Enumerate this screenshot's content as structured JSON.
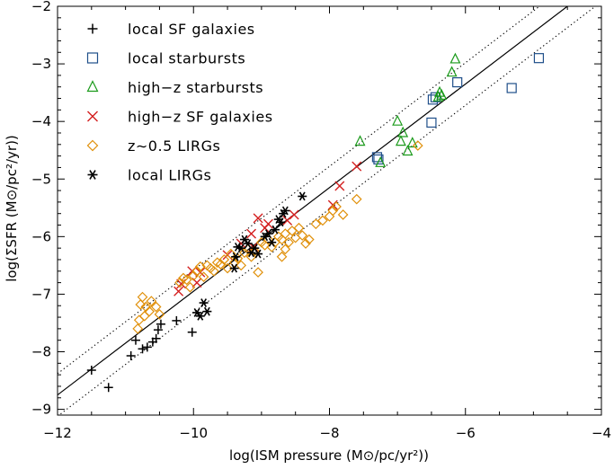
{
  "chart_data": {
    "type": "scatter",
    "xlabel": "log(ISM pressure (M⊙/pc/yr²))",
    "ylabel": "log(ΣSFR (M⊙/pc²/yr))",
    "xlim": [
      -12,
      -4
    ],
    "ylim": [
      -9.1,
      -2
    ],
    "x_ticks": [
      -12,
      -10,
      -8,
      -6,
      -4
    ],
    "x_tick_labels": [
      "−12",
      "−10",
      "−8",
      "−6",
      "−4"
    ],
    "y_ticks": [
      -9,
      -8,
      -7,
      -6,
      -5,
      -4,
      -3,
      -2
    ],
    "y_tick_labels": [
      "−9",
      "−8",
      "−7",
      "−6",
      "−5",
      "−4",
      "−3",
      "−2"
    ],
    "grid": false,
    "legend_position": "top-left",
    "fit_lines": [
      {
        "style": "solid",
        "points": [
          [
            -12,
            -8.75
          ],
          [
            -4,
            -1.55
          ]
        ]
      },
      {
        "style": "dotted",
        "points": [
          [
            -12,
            -8.38
          ],
          [
            -4,
            -1.18
          ]
        ]
      },
      {
        "style": "dotted",
        "points": [
          [
            -12,
            -9.12
          ],
          [
            -4,
            -1.92
          ]
        ]
      }
    ],
    "series": [
      {
        "name": "local SF galaxies",
        "marker": "plus",
        "color": "#000000",
        "points": [
          [
            -11.5,
            -8.32
          ],
          [
            -11.25,
            -8.62
          ],
          [
            -10.92,
            -8.07
          ],
          [
            -10.85,
            -7.8
          ],
          [
            -10.75,
            -7.95
          ],
          [
            -10.68,
            -7.92
          ],
          [
            -10.6,
            -7.83
          ],
          [
            -10.55,
            -7.77
          ],
          [
            -10.52,
            -7.62
          ],
          [
            -10.48,
            -7.52
          ],
          [
            -10.25,
            -7.46
          ],
          [
            -10.02,
            -7.66
          ]
        ]
      },
      {
        "name": "local starbursts",
        "marker": "square",
        "color": "#1f4f8a",
        "points": [
          [
            -7.3,
            -4.62
          ],
          [
            -7.28,
            -4.66
          ],
          [
            -6.5,
            -4.02
          ],
          [
            -6.48,
            -3.62
          ],
          [
            -6.44,
            -3.58
          ],
          [
            -6.12,
            -3.32
          ],
          [
            -5.32,
            -3.42
          ],
          [
            -4.92,
            -2.9
          ]
        ]
      },
      {
        "name": "high−z starbursts",
        "marker": "triangle",
        "color": "#1a9a1a",
        "points": [
          [
            -7.55,
            -4.35
          ],
          [
            -7.25,
            -4.72
          ],
          [
            -7.0,
            -4.0
          ],
          [
            -6.95,
            -4.35
          ],
          [
            -6.92,
            -4.2
          ],
          [
            -6.85,
            -4.52
          ],
          [
            -6.78,
            -4.38
          ],
          [
            -6.4,
            -3.58
          ],
          [
            -6.38,
            -3.5
          ],
          [
            -6.35,
            -3.55
          ],
          [
            -6.2,
            -3.15
          ],
          [
            -6.15,
            -2.92
          ]
        ]
      },
      {
        "name": "high−z SF galaxies",
        "marker": "cross",
        "color": "#d42020",
        "points": [
          [
            -10.22,
            -6.95
          ],
          [
            -10.18,
            -6.82
          ],
          [
            -10.02,
            -6.6
          ],
          [
            -9.95,
            -6.8
          ],
          [
            -9.9,
            -6.62
          ],
          [
            -9.5,
            -6.32
          ],
          [
            -9.3,
            -6.12
          ],
          [
            -9.15,
            -5.95
          ],
          [
            -9.12,
            -6.18
          ],
          [
            -9.05,
            -5.68
          ],
          [
            -8.95,
            -5.85
          ],
          [
            -8.9,
            -5.78
          ],
          [
            -8.62,
            -5.72
          ],
          [
            -8.52,
            -5.62
          ],
          [
            -7.95,
            -5.45
          ],
          [
            -7.85,
            -5.12
          ],
          [
            -7.6,
            -4.78
          ]
        ]
      },
      {
        "name": "z∼0.5 LIRGs",
        "marker": "diamond",
        "color": "#e0900a",
        "points": [
          [
            -10.82,
            -7.6
          ],
          [
            -10.8,
            -7.45
          ],
          [
            -10.78,
            -7.18
          ],
          [
            -10.75,
            -7.05
          ],
          [
            -10.72,
            -7.38
          ],
          [
            -10.7,
            -7.22
          ],
          [
            -10.65,
            -7.3
          ],
          [
            -10.62,
            -7.12
          ],
          [
            -10.55,
            -7.22
          ],
          [
            -10.5,
            -7.35
          ],
          [
            -10.2,
            -6.8
          ],
          [
            -10.15,
            -6.72
          ],
          [
            -10.1,
            -6.75
          ],
          [
            -10.05,
            -6.88
          ],
          [
            -10.0,
            -6.68
          ],
          [
            -9.95,
            -6.6
          ],
          [
            -9.9,
            -6.52
          ],
          [
            -9.85,
            -6.7
          ],
          [
            -9.8,
            -6.5
          ],
          [
            -9.75,
            -6.55
          ],
          [
            -9.7,
            -6.6
          ],
          [
            -9.65,
            -6.45
          ],
          [
            -9.6,
            -6.48
          ],
          [
            -9.55,
            -6.4
          ],
          [
            -9.5,
            -6.55
          ],
          [
            -9.45,
            -6.3
          ],
          [
            -9.4,
            -6.45
          ],
          [
            -9.35,
            -6.38
          ],
          [
            -9.3,
            -6.5
          ],
          [
            -9.25,
            -6.28
          ],
          [
            -9.2,
            -6.22
          ],
          [
            -9.15,
            -6.35
          ],
          [
            -9.1,
            -6.25
          ],
          [
            -9.05,
            -6.62
          ],
          [
            -9.0,
            -6.1
          ],
          [
            -8.95,
            -6.15
          ],
          [
            -8.9,
            -6.05
          ],
          [
            -8.85,
            -6.18
          ],
          [
            -8.8,
            -6.1
          ],
          [
            -8.75,
            -6.0
          ],
          [
            -8.7,
            -6.05
          ],
          [
            -8.65,
            -5.95
          ],
          [
            -8.6,
            -6.1
          ],
          [
            -8.55,
            -5.9
          ],
          [
            -8.5,
            -6.02
          ],
          [
            -8.45,
            -5.85
          ],
          [
            -8.4,
            -5.98
          ],
          [
            -8.35,
            -6.12
          ],
          [
            -8.3,
            -6.05
          ],
          [
            -8.7,
            -6.35
          ],
          [
            -8.65,
            -6.22
          ],
          [
            -8.2,
            -5.78
          ],
          [
            -8.1,
            -5.72
          ],
          [
            -8.0,
            -5.65
          ],
          [
            -7.95,
            -5.55
          ],
          [
            -7.9,
            -5.48
          ],
          [
            -7.8,
            -5.62
          ],
          [
            -7.6,
            -5.35
          ],
          [
            -6.7,
            -4.42
          ]
        ]
      },
      {
        "name": "local LIRGs",
        "marker": "asterisk",
        "color": "#000000",
        "points": [
          [
            -9.95,
            -7.32
          ],
          [
            -9.9,
            -7.38
          ],
          [
            -9.85,
            -7.15
          ],
          [
            -9.8,
            -7.3
          ],
          [
            -9.4,
            -6.55
          ],
          [
            -9.38,
            -6.35
          ],
          [
            -9.35,
            -6.18
          ],
          [
            -9.3,
            -6.2
          ],
          [
            -9.25,
            -6.05
          ],
          [
            -9.2,
            -6.12
          ],
          [
            -9.15,
            -6.28
          ],
          [
            -9.1,
            -6.2
          ],
          [
            -9.05,
            -6.3
          ],
          [
            -8.95,
            -6.0
          ],
          [
            -8.9,
            -5.95
          ],
          [
            -8.85,
            -6.1
          ],
          [
            -8.8,
            -5.88
          ],
          [
            -8.75,
            -5.7
          ],
          [
            -8.72,
            -5.75
          ],
          [
            -8.68,
            -5.6
          ],
          [
            -8.65,
            -5.55
          ],
          [
            -8.4,
            -5.3
          ]
        ]
      }
    ]
  }
}
